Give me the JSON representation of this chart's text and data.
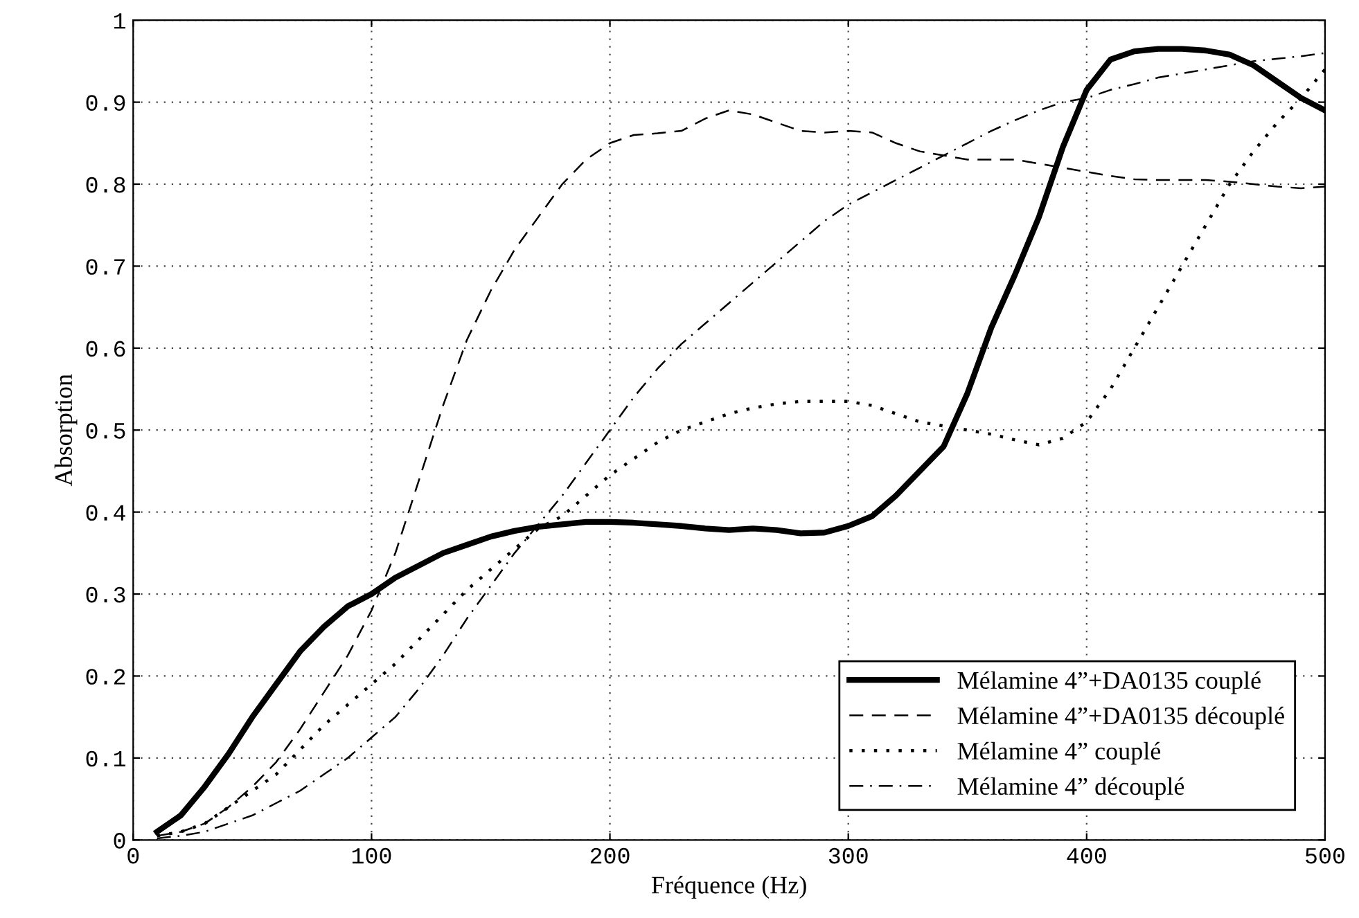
{
  "chart_data": {
    "type": "line",
    "xlabel": "Fréquence (Hz)",
    "ylabel": "Absorption",
    "x": [
      10,
      20,
      30,
      40,
      50,
      60,
      70,
      80,
      90,
      100,
      110,
      120,
      130,
      140,
      150,
      160,
      170,
      180,
      190,
      200,
      210,
      220,
      230,
      240,
      250,
      260,
      270,
      280,
      290,
      300,
      310,
      320,
      330,
      340,
      350,
      360,
      370,
      380,
      390,
      400,
      410,
      420,
      430,
      440,
      450,
      460,
      470,
      480,
      490,
      500
    ],
    "series": [
      {
        "name": "Mélamine 4”+DA0135 couplé",
        "color": "#000000",
        "line_style": "solid",
        "values": [
          0.01,
          0.03,
          0.065,
          0.105,
          0.15,
          0.19,
          0.23,
          0.26,
          0.285,
          0.3,
          0.32,
          0.335,
          0.35,
          0.36,
          0.37,
          0.377,
          0.382,
          0.385,
          0.388,
          0.388,
          0.387,
          0.385,
          0.383,
          0.38,
          0.378,
          0.38,
          0.378,
          0.374,
          0.375,
          0.383,
          0.395,
          0.42,
          0.45,
          0.48,
          0.545,
          0.625,
          0.69,
          0.76,
          0.845,
          0.915,
          0.952,
          0.962,
          0.965,
          0.965,
          0.963,
          0.958,
          0.945,
          0.925,
          0.905,
          0.89
        ]
      },
      {
        "name": "Mélamine 4”+DA0135 découplé",
        "color": "#000000",
        "line_style": "dashed",
        "values": [
          0.005,
          0.01,
          0.02,
          0.04,
          0.065,
          0.095,
          0.135,
          0.18,
          0.225,
          0.28,
          0.35,
          0.44,
          0.53,
          0.61,
          0.67,
          0.72,
          0.76,
          0.8,
          0.83,
          0.85,
          0.86,
          0.862,
          0.865,
          0.88,
          0.89,
          0.885,
          0.875,
          0.865,
          0.863,
          0.865,
          0.863,
          0.85,
          0.84,
          0.835,
          0.83,
          0.83,
          0.83,
          0.825,
          0.82,
          0.815,
          0.81,
          0.806,
          0.805,
          0.805,
          0.805,
          0.803,
          0.8,
          0.797,
          0.795,
          0.797
        ]
      },
      {
        "name": "Mélamine 4” couplé",
        "color": "#000000",
        "line_style": "dotted",
        "values": [
          0.005,
          0.01,
          0.02,
          0.04,
          0.06,
          0.08,
          0.11,
          0.14,
          0.165,
          0.19,
          0.215,
          0.245,
          0.275,
          0.305,
          0.33,
          0.355,
          0.38,
          0.395,
          0.42,
          0.445,
          0.465,
          0.485,
          0.5,
          0.51,
          0.52,
          0.527,
          0.532,
          0.535,
          0.535,
          0.535,
          0.53,
          0.52,
          0.51,
          0.505,
          0.5,
          0.495,
          0.488,
          0.482,
          0.49,
          0.51,
          0.55,
          0.6,
          0.65,
          0.7,
          0.75,
          0.8,
          0.84,
          0.875,
          0.905,
          0.94
        ]
      },
      {
        "name": "Mélamine 4” découplé",
        "color": "#000000",
        "line_style": "dashdot",
        "values": [
          0.002,
          0.005,
          0.01,
          0.02,
          0.03,
          0.045,
          0.06,
          0.08,
          0.1,
          0.125,
          0.15,
          0.185,
          0.225,
          0.27,
          0.31,
          0.35,
          0.385,
          0.42,
          0.46,
          0.5,
          0.54,
          0.575,
          0.605,
          0.63,
          0.655,
          0.68,
          0.705,
          0.73,
          0.755,
          0.775,
          0.79,
          0.805,
          0.82,
          0.835,
          0.85,
          0.865,
          0.878,
          0.89,
          0.9,
          0.905,
          0.915,
          0.922,
          0.93,
          0.935,
          0.94,
          0.945,
          0.95,
          0.953,
          0.956,
          0.96
        ]
      }
    ],
    "xlim": [
      0,
      500
    ],
    "xticks": [
      0,
      100,
      200,
      300,
      400,
      500
    ],
    "ylim": [
      0,
      1
    ],
    "yticks": [
      0,
      0.1,
      0.2,
      0.3,
      0.4,
      0.5,
      0.6,
      0.7,
      0.8,
      0.9,
      1
    ],
    "grid": true,
    "legend": "bottom right"
  }
}
